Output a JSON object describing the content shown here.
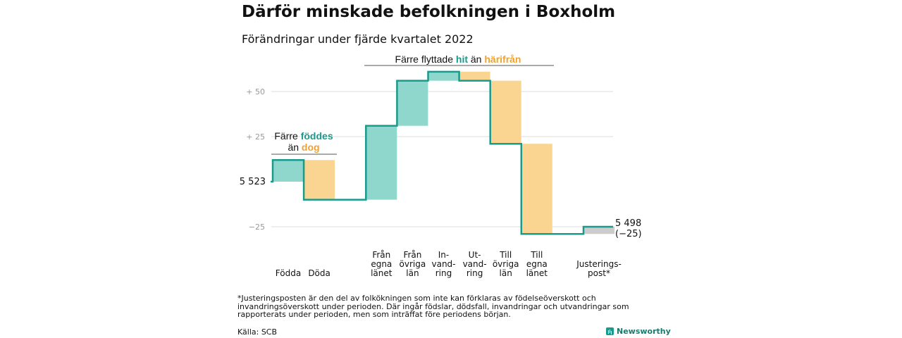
{
  "title": "Därför minskade befolkningen i Boxholm",
  "subtitle": "Förändringar under fjärde kvartalet 2022",
  "chart_data": {
    "type": "waterfall",
    "start_value": 5523,
    "start_label": "5 523",
    "end_value": 5498,
    "end_label": "5 498",
    "end_change_label": "(−25)",
    "yticks": [
      {
        "value": 50,
        "label": "+ 50"
      },
      {
        "value": 25,
        "label": "+ 25"
      },
      {
        "value": -25,
        "label": "−25"
      }
    ],
    "ylim": [
      -29,
      65
    ],
    "steps": [
      {
        "label_lines": [
          "Födda"
        ],
        "delta": 12,
        "kind": "in"
      },
      {
        "label_lines": [
          "Döda"
        ],
        "delta": -22,
        "kind": "out"
      },
      {
        "label_lines": [],
        "delta": 0,
        "kind": "gap"
      },
      {
        "label_lines": [
          "Från",
          "egna",
          "länet"
        ],
        "delta": 41,
        "kind": "in"
      },
      {
        "label_lines": [
          "Från",
          "övriga",
          "län"
        ],
        "delta": 25,
        "kind": "in"
      },
      {
        "label_lines": [
          "In-",
          "vand-",
          "ring"
        ],
        "delta": 5,
        "kind": "in"
      },
      {
        "label_lines": [
          "Ut-",
          "vand-",
          "ring"
        ],
        "delta": -5,
        "kind": "out"
      },
      {
        "label_lines": [
          "Till",
          "övriga",
          "län"
        ],
        "delta": -35,
        "kind": "out"
      },
      {
        "label_lines": [
          "Till",
          "egna",
          "länet"
        ],
        "delta": -50,
        "kind": "out"
      },
      {
        "label_lines": [],
        "delta": 0,
        "kind": "gap"
      },
      {
        "label_lines": [
          "Justerings-",
          "post*"
        ],
        "delta": 4,
        "kind": "adjust"
      }
    ],
    "annotations": {
      "births": {
        "line1_plain": "Färre ",
        "line1_teal": "föddes",
        "line2_plain": "än ",
        "line2_orange": "dog"
      },
      "migration": {
        "plain1": "Färre flyttade ",
        "teal": "hit",
        "plain2": " än ",
        "orange": "härifrån"
      }
    },
    "colors": {
      "in": "#8fd6cc",
      "out": "#fad591",
      "adjust": "#cccccc",
      "line": "#1a9a8c",
      "grid": "#dddddd"
    }
  },
  "footnote": "*Justeringsposten är den del av folkökningen som inte kan förklaras av födelseöverskott och invandringsöverskott under perioden. Där ingår födslar, dödsfall, invandringar och utvandringar som rapporterats under perioden, men som inträffat före periodens början.",
  "source": "Källa: SCB",
  "brand": "Newsworthy"
}
